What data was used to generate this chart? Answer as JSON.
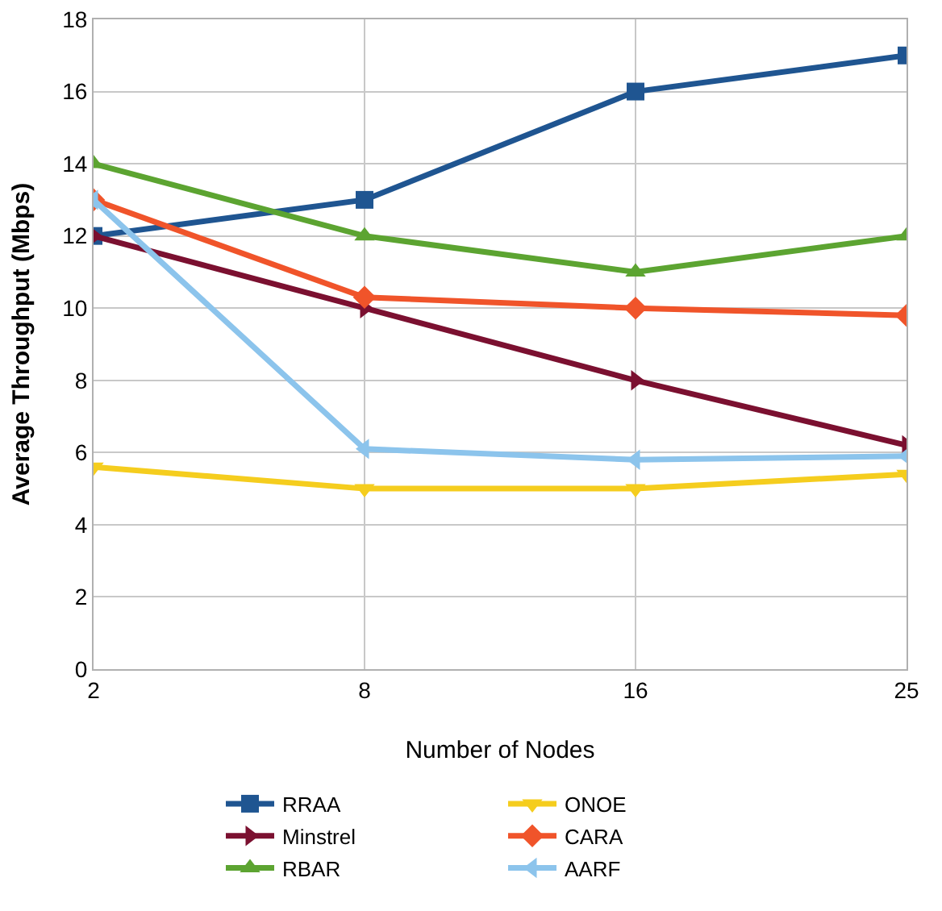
{
  "chart_data": {
    "type": "line",
    "xlabel": "Number of Nodes",
    "ylabel": "Average Throughput (Mbps)",
    "categories": [
      "2",
      "8",
      "16",
      "25"
    ],
    "ylim": [
      0,
      18
    ],
    "yticks": [
      0,
      2,
      4,
      6,
      8,
      10,
      12,
      14,
      16,
      18
    ],
    "grid": true,
    "legend": "bottom",
    "line_style": "solid",
    "series": [
      {
        "name": "RRAA",
        "color": "#1f5591",
        "marker": "square",
        "values": [
          12,
          13,
          16,
          17
        ]
      },
      {
        "name": "ONOE",
        "color": "#f5cd1e",
        "marker": "triangle-down",
        "values": [
          5.6,
          5,
          5,
          5.4
        ]
      },
      {
        "name": "Minstrel",
        "color": "#7b1030",
        "marker": "triangle-right",
        "values": [
          12,
          10,
          8,
          6.2
        ]
      },
      {
        "name": "CARA",
        "color": "#f0542a",
        "marker": "diamond",
        "values": [
          13,
          10.3,
          10,
          9.8
        ]
      },
      {
        "name": "RBAR",
        "color": "#5ca431",
        "marker": "triangle-up",
        "values": [
          14,
          12,
          11,
          12
        ]
      },
      {
        "name": "AARF",
        "color": "#8cc4ec",
        "marker": "triangle-left",
        "values": [
          13,
          6.1,
          5.8,
          5.9
        ]
      }
    ]
  }
}
